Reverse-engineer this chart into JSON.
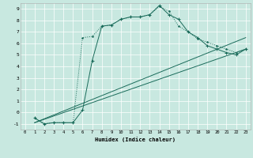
{
  "title": "",
  "xlabel": "Humidex (Indice chaleur)",
  "bg_color": "#c8e8e0",
  "grid_color": "#ffffff",
  "line_color": "#1a6b5a",
  "xlim": [
    -0.5,
    23.5
  ],
  "ylim": [
    -1.5,
    9.5
  ],
  "xticks": [
    0,
    1,
    2,
    3,
    4,
    5,
    6,
    7,
    8,
    9,
    10,
    11,
    12,
    13,
    14,
    15,
    16,
    17,
    18,
    19,
    20,
    21,
    22,
    23
  ],
  "yticks": [
    -1,
    0,
    1,
    2,
    3,
    4,
    5,
    6,
    7,
    8,
    9
  ],
  "series_dotted_x": [
    1,
    2,
    3,
    4,
    5,
    6,
    7,
    8,
    9,
    10,
    11,
    12,
    13,
    14,
    15,
    16,
    17,
    18,
    19,
    20,
    21,
    22,
    23
  ],
  "series_dotted_y": [
    -0.5,
    -1.0,
    -0.9,
    -0.9,
    -0.9,
    6.5,
    6.6,
    7.5,
    7.6,
    8.1,
    8.3,
    8.3,
    8.5,
    9.2,
    8.8,
    7.5,
    7.0,
    6.4,
    6.1,
    5.8,
    5.5,
    5.2,
    5.5
  ],
  "series_solid_x": [
    1,
    2,
    3,
    4,
    5,
    6,
    7,
    8,
    9,
    10,
    11,
    12,
    13,
    14,
    15,
    16,
    17,
    18,
    19,
    20,
    21,
    22,
    23
  ],
  "series_solid_y": [
    -0.5,
    -1.0,
    -0.9,
    -0.9,
    -0.9,
    0.2,
    4.5,
    7.5,
    7.6,
    8.1,
    8.3,
    8.3,
    8.5,
    9.3,
    8.5,
    8.1,
    7.0,
    6.5,
    5.8,
    5.5,
    5.2,
    5.0,
    5.5
  ],
  "series_line1_x": [
    1,
    23
  ],
  "series_line1_y": [
    -0.9,
    5.5
  ],
  "series_line2_x": [
    1,
    23
  ],
  "series_line2_y": [
    -0.9,
    6.5
  ]
}
